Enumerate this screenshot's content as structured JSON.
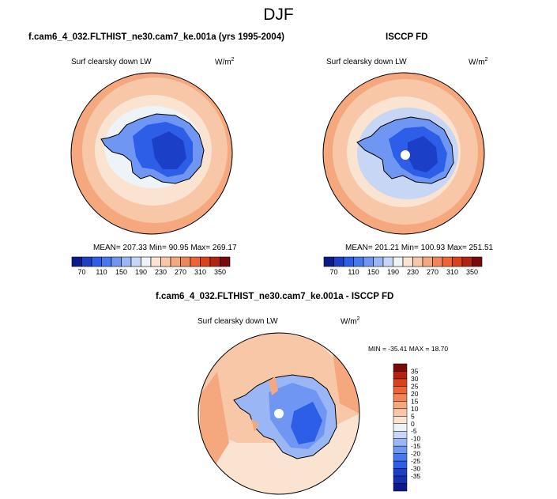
{
  "figure": {
    "season": "DJF",
    "panels": [
      {
        "title": "f.cam6_4_032.FLTHIST_ne30.cam7_ke.001a (yrs 1995-2004)",
        "variable": "Surf clearsky down LW",
        "units_base": "W/m",
        "units_exp": "2",
        "stats": "MEAN= 207.33  Min=  90.95  Max= 269.17"
      },
      {
        "title": "ISCCP FD",
        "variable": "Surf clearsky down LW",
        "units_base": "W/m",
        "units_exp": "2",
        "stats": "MEAN= 201.21  Min= 100.93  Max= 251.51"
      },
      {
        "title": "f.cam6_4_032.FLTHIST_ne30.cam7_ke.001a - ISCCP FD",
        "variable": "Surf clearsky down LW",
        "units_base": "W/m",
        "units_exp": "2",
        "stats": "MIN = -35.41 MAX =  18.70"
      }
    ],
    "abs_colorbar": {
      "colors": [
        "#0a1a8a",
        "#1c3fc8",
        "#2c5ee8",
        "#4678f0",
        "#6f96f2",
        "#9bb6f4",
        "#c6d6f4",
        "#eef3f7",
        "#fbe3d2",
        "#f8c7a8",
        "#f5a77e",
        "#f2845a",
        "#ee6433",
        "#d9421a",
        "#b32410",
        "#7a0a0a"
      ],
      "labels": [
        "70",
        "110",
        "150",
        "190",
        "230",
        "270",
        "310",
        "350"
      ]
    },
    "diff_colorbar": {
      "colors": [
        "#0a1a8a",
        "#1430b0",
        "#1c3fc8",
        "#2c5ee8",
        "#4678f0",
        "#6f96f2",
        "#9bb6f4",
        "#c6d6f4",
        "#eef3f7",
        "#fbe3d2",
        "#f8c7a8",
        "#f5a77e",
        "#f2845a",
        "#ee6433",
        "#d9421a",
        "#b32410",
        "#7a0a0a"
      ],
      "labels": [
        "35",
        "30",
        "25",
        "20",
        "15",
        "10",
        "5",
        "0",
        "-5",
        "-10",
        "-15",
        "-20",
        "-25",
        "-30",
        "-35"
      ]
    },
    "map_colors": {
      "ocean_outer": "#f5a77e",
      "ocean_mid": "#f8c7a8",
      "ocean_inner": "#fbe3d2",
      "ice_edge": "#c6d6f4",
      "ant_light": "#6f96f2",
      "ant_mid": "#2c5ee8",
      "ant_dark": "#1c3fc8"
    }
  }
}
